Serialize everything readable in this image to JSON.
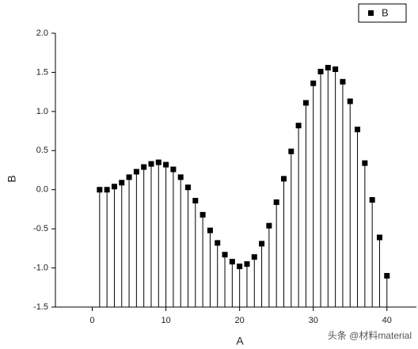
{
  "chart_data": {
    "type": "stem",
    "x_label": "A",
    "y_label": "B",
    "x": [
      1,
      2,
      3,
      4,
      5,
      6,
      7,
      8,
      9,
      10,
      11,
      12,
      13,
      14,
      15,
      16,
      17,
      18,
      19,
      20,
      21,
      22,
      23,
      24,
      25,
      26,
      27,
      28,
      29,
      30,
      31,
      32,
      33,
      34,
      35,
      36,
      37,
      38,
      39,
      40
    ],
    "series": [
      {
        "name": "B",
        "color": "#000000",
        "values": [
          0.0,
          0.0,
          0.04,
          0.09,
          0.16,
          0.23,
          0.29,
          0.33,
          0.35,
          0.32,
          0.26,
          0.16,
          0.03,
          -0.14,
          -0.32,
          -0.52,
          -0.68,
          -0.83,
          -0.92,
          -0.98,
          -0.95,
          -0.86,
          -0.69,
          -0.46,
          -0.16,
          0.14,
          0.49,
          0.82,
          1.11,
          1.36,
          1.51,
          1.56,
          1.54,
          1.38,
          1.13,
          0.77,
          0.34,
          -0.13,
          -0.61,
          -1.1
        ]
      }
    ],
    "xlim": [
      -5,
      44
    ],
    "ylim": [
      -1.5,
      2.0
    ],
    "xticks": [
      0,
      10,
      20,
      30,
      40
    ],
    "yticks": [
      -1.5,
      {
        "value": -1.0,
        "label": "-1.0"
      },
      -0.5,
      {
        "value": 0,
        "label": "0.0"
      },
      0.5,
      {
        "value": 1.0,
        "label": "1.0"
      },
      1.5,
      {
        "value": 2.0,
        "label": "2.0"
      }
    ],
    "legend": "top-right",
    "watermark": "头条 @材料material"
  }
}
